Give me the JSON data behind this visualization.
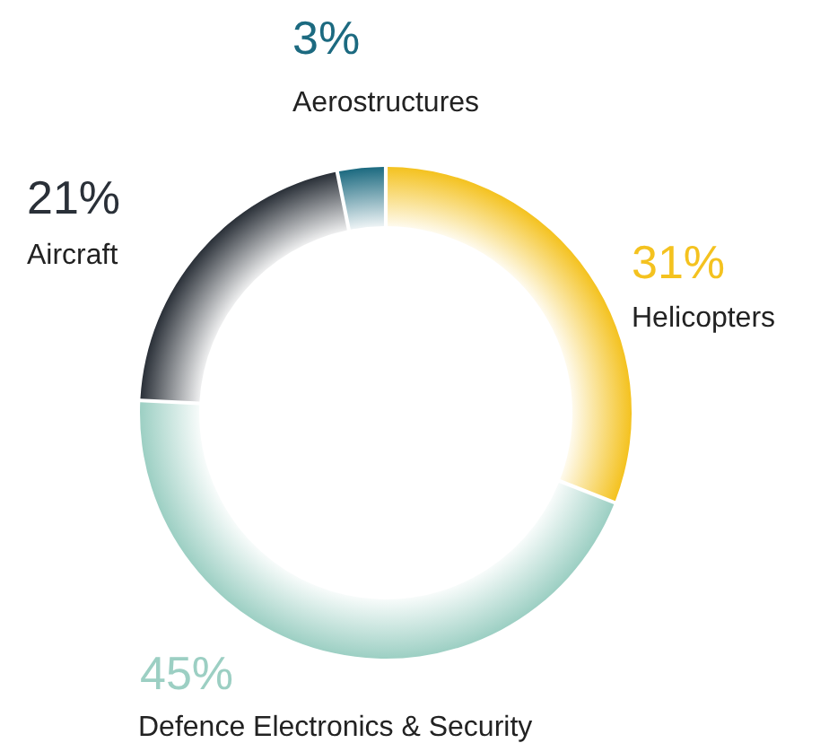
{
  "chart_data": {
    "type": "donut",
    "categories": [
      "Helicopters",
      "Defence Electronics & Security",
      "Aircraft",
      "Aerostructures"
    ],
    "values": [
      31,
      45,
      21,
      3
    ],
    "colors": [
      "#f4c21f",
      "#9ccfc3",
      "#2a3038",
      "#1c6a80"
    ],
    "value_labels": [
      "31%",
      "45%",
      "21%",
      "3%"
    ]
  }
}
